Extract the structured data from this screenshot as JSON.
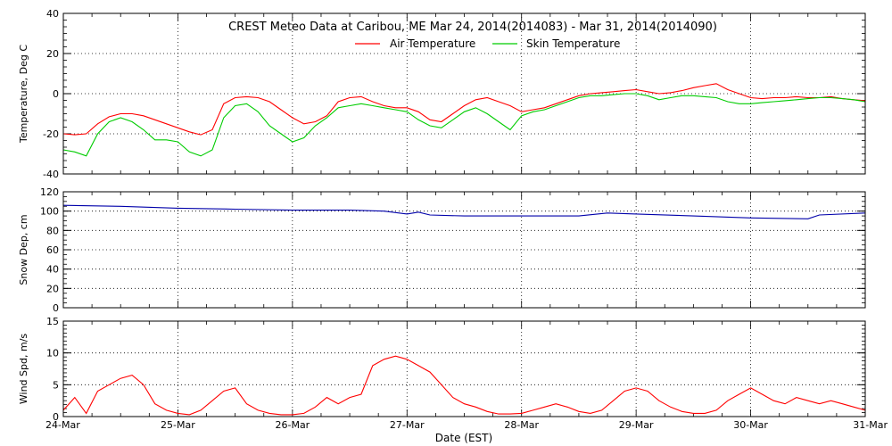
{
  "figure": {
    "title": "CREST Meteo Data at Caribou, ME   Mar 24, 2014(2014083) - Mar 31, 2014(2014090)",
    "xlabel": "Date (EST)",
    "x_tick_labels": [
      "24-Mar",
      "25-Mar",
      "26-Mar",
      "27-Mar",
      "28-Mar",
      "29-Mar",
      "30-Mar",
      "31-Mar"
    ]
  },
  "chart_data": [
    {
      "type": "line",
      "ylabel": "Temperature, Deg C",
      "xlim": [
        0,
        7
      ],
      "x_unit": "days since 24-Mar 00:00",
      "ylim": [
        -40,
        40
      ],
      "y_ticks": [
        -40,
        -20,
        0,
        20,
        40
      ],
      "grid": true,
      "legend": "top-center",
      "series": [
        {
          "name": "Air Temperature",
          "color": "#ff0000",
          "x": [
            0,
            0.1,
            0.2,
            0.3,
            0.4,
            0.5,
            0.6,
            0.7,
            0.8,
            0.9,
            1.0,
            1.1,
            1.2,
            1.3,
            1.4,
            1.5,
            1.6,
            1.7,
            1.8,
            1.9,
            2.0,
            2.1,
            2.2,
            2.3,
            2.4,
            2.5,
            2.6,
            2.7,
            2.8,
            2.9,
            3.0,
            3.1,
            3.2,
            3.3,
            3.4,
            3.5,
            3.6,
            3.7,
            3.8,
            3.9,
            4.0,
            4.1,
            4.2,
            4.3,
            4.4,
            4.5,
            4.6,
            4.7,
            4.8,
            4.9,
            5.0,
            5.1,
            5.2,
            5.3,
            5.4,
            5.5,
            5.6,
            5.7,
            5.8,
            5.9,
            6.0,
            6.1,
            6.2,
            6.3,
            6.4,
            6.5,
            6.6,
            6.7,
            6.8,
            6.9,
            7.0
          ],
          "y": [
            -20,
            -20.5,
            -20,
            -15,
            -11.5,
            -10,
            -10,
            -11,
            -13,
            -15,
            -17,
            -19,
            -20.5,
            -18,
            -5,
            -2,
            -1.5,
            -2,
            -4,
            -8,
            -12,
            -15,
            -14,
            -11,
            -4,
            -2,
            -1.5,
            -4,
            -6,
            -7,
            -7,
            -9,
            -13,
            -14,
            -10,
            -6,
            -3,
            -2,
            -4,
            -6,
            -9,
            -8,
            -7,
            -5,
            -3,
            -1,
            0,
            0.5,
            1,
            1.5,
            2,
            1,
            0,
            0.5,
            1.5,
            3,
            4,
            5,
            2,
            0,
            -2,
            -2.5,
            -2,
            -2,
            -1.5,
            -2,
            -2,
            -1.5,
            -2.5,
            -3,
            -3.5
          ]
        },
        {
          "name": "Skin Temperature",
          "color": "#00cc00",
          "x": [
            0,
            0.1,
            0.2,
            0.3,
            0.4,
            0.5,
            0.6,
            0.7,
            0.8,
            0.9,
            1.0,
            1.1,
            1.2,
            1.3,
            1.4,
            1.5,
            1.6,
            1.7,
            1.8,
            1.9,
            2.0,
            2.1,
            2.2,
            2.3,
            2.4,
            2.5,
            2.6,
            2.7,
            2.8,
            2.9,
            3.0,
            3.1,
            3.2,
            3.3,
            3.4,
            3.5,
            3.6,
            3.7,
            3.8,
            3.9,
            4.0,
            4.1,
            4.2,
            4.3,
            4.4,
            4.5,
            4.6,
            4.7,
            4.8,
            4.9,
            5.0,
            5.1,
            5.2,
            5.3,
            5.4,
            5.5,
            5.6,
            5.7,
            5.8,
            5.9,
            6.0,
            6.1,
            6.2,
            6.3,
            6.4,
            6.5,
            6.6,
            6.7,
            6.8,
            6.9,
            7.0
          ],
          "y": [
            -28,
            -29,
            -31,
            -20,
            -14,
            -12,
            -14,
            -18,
            -23,
            -23,
            -24,
            -29,
            -31,
            -28,
            -12,
            -6,
            -5,
            -9,
            -16,
            -20,
            -24,
            -22,
            -16,
            -12,
            -7,
            -6,
            -5,
            -6,
            -7,
            -8,
            -9,
            -13,
            -16,
            -17,
            -13,
            -9,
            -7,
            -10,
            -14,
            -18,
            -11,
            -9,
            -8,
            -6,
            -4,
            -2,
            -1,
            -1,
            -0.5,
            0,
            0,
            -1,
            -3,
            -2,
            -1,
            -1,
            -1.5,
            -2,
            -4,
            -5,
            -5,
            -4.5,
            -4,
            -3.5,
            -3,
            -2.5,
            -2,
            -2,
            -2.5,
            -3,
            -4
          ]
        }
      ]
    },
    {
      "type": "line",
      "ylabel": "Snow Dep, cm",
      "xlim": [
        0,
        7
      ],
      "x_unit": "days since 24-Mar 00:00",
      "ylim": [
        0,
        120
      ],
      "y_ticks": [
        0,
        20,
        40,
        60,
        80,
        100,
        120
      ],
      "grid": true,
      "series": [
        {
          "color": "#0000aa",
          "x": [
            0,
            0.5,
            1.0,
            1.5,
            2.0,
            2.5,
            2.8,
            3.0,
            3.1,
            3.2,
            3.5,
            4.0,
            4.5,
            4.75,
            5.0,
            5.5,
            6.0,
            6.5,
            6.6,
            7.0
          ],
          "y": [
            106,
            105,
            103,
            102,
            101,
            101,
            100,
            97,
            99,
            96,
            95,
            95,
            95,
            98,
            97,
            95,
            93,
            92,
            96,
            98
          ]
        }
      ]
    },
    {
      "type": "line",
      "ylabel": "Wind Spd, m/s",
      "xlim": [
        0,
        7
      ],
      "x_unit": "days since 24-Mar 00:00",
      "ylim": [
        0,
        15
      ],
      "y_ticks": [
        0,
        5,
        10,
        15
      ],
      "grid": true,
      "series": [
        {
          "color": "#ff0000",
          "x": [
            0,
            0.1,
            0.2,
            0.3,
            0.4,
            0.5,
            0.6,
            0.7,
            0.8,
            0.9,
            1.0,
            1.1,
            1.2,
            1.3,
            1.4,
            1.5,
            1.6,
            1.7,
            1.8,
            1.9,
            2.0,
            2.1,
            2.2,
            2.3,
            2.4,
            2.5,
            2.6,
            2.7,
            2.8,
            2.9,
            3.0,
            3.1,
            3.2,
            3.3,
            3.4,
            3.5,
            3.6,
            3.7,
            3.8,
            3.9,
            4.0,
            4.1,
            4.2,
            4.3,
            4.4,
            4.5,
            4.6,
            4.7,
            4.8,
            4.9,
            5.0,
            5.1,
            5.2,
            5.3,
            5.4,
            5.5,
            5.6,
            5.7,
            5.8,
            5.9,
            6.0,
            6.1,
            6.2,
            6.3,
            6.4,
            6.5,
            6.6,
            6.7,
            6.8,
            6.9,
            7.0
          ],
          "y": [
            1,
            3,
            0.5,
            4,
            5,
            6,
            6.5,
            5,
            2,
            1,
            0.5,
            0.3,
            1,
            2.5,
            4,
            4.5,
            2,
            1,
            0.5,
            0.3,
            0.3,
            0.5,
            1.5,
            3,
            2,
            3,
            3.5,
            8,
            9,
            9.5,
            9,
            8,
            7,
            5,
            3,
            2,
            1.5,
            0.8,
            0.4,
            0.4,
            0.5,
            1,
            1.5,
            2,
            1.5,
            0.8,
            0.5,
            1,
            2.5,
            4,
            4.5,
            4,
            2.5,
            1.5,
            0.8,
            0.5,
            0.5,
            1,
            2.5,
            3.5,
            4.5,
            3.5,
            2.5,
            2,
            3,
            2.5,
            2,
            2.5,
            2,
            1.5,
            1
          ]
        }
      ]
    }
  ]
}
